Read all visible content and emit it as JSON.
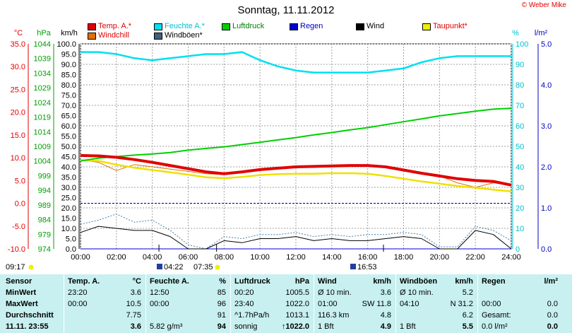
{
  "title": "Sonntag, 11.11.2012",
  "copyright": "© Weber Mike",
  "axis_units": {
    "temp": "°C",
    "pressure": "hPa",
    "wind": "km/h",
    "humidity": "%",
    "rain": "l/m²"
  },
  "colors": {
    "temp": "#e00000",
    "humidity": "#00e0f0",
    "pressure": "#00d000",
    "rain": "#0000d0",
    "wind": "#000000",
    "dewpoint": "#f0f000",
    "windchill": "#e07000",
    "gust": "#4080a0",
    "stats_bg": "#c8f0f0"
  },
  "legend": [
    {
      "label": "Temp. A.*",
      "color": "#e00000"
    },
    {
      "label": "Feuchte A.*",
      "color": "#00e0f0"
    },
    {
      "label": "Luftdruck",
      "color": "#00d000"
    },
    {
      "label": "Regen",
      "color": "#0000d0"
    },
    {
      "label": "Wind",
      "color": "#000000"
    },
    {
      "label": "Taupunkt*",
      "color": "#f0f000"
    },
    {
      "label": "Windchill",
      "color": "#e07000"
    },
    {
      "label": "Windböen*",
      "color": "#406080"
    }
  ],
  "chart_data": {
    "type": "line",
    "title": "Sonntag, 11.11.2012",
    "x": [
      0,
      1,
      2,
      3,
      4,
      5,
      6,
      7,
      8,
      9,
      10,
      11,
      12,
      13,
      14,
      15,
      16,
      17,
      18,
      19,
      20,
      21,
      22,
      23,
      24
    ],
    "xlim": [
      0,
      24
    ],
    "x_ticks": [
      "00:00",
      "02:00",
      "04:00",
      "06:00",
      "08:00",
      "10:00",
      "12:00",
      "14:00",
      "16:00",
      "18:00",
      "20:00",
      "22:00",
      "24:00"
    ],
    "axes": {
      "temp": {
        "label": "°C",
        "range": [
          -10,
          35
        ],
        "ticks": [
          "35.0",
          "30.0",
          "25.0",
          "20.0",
          "15.0",
          "10.0",
          "5.0",
          "0.0",
          "-5.0",
          "-10.0"
        ]
      },
      "pressure": {
        "label": "hPa",
        "range": [
          974,
          1044
        ],
        "ticks": [
          "1044",
          "1039",
          "1034",
          "1029",
          "1024",
          "1019",
          "1014",
          "1009",
          "1004",
          "999",
          "994",
          "989",
          "984",
          "979",
          "974"
        ]
      },
      "wind": {
        "label": "km/h",
        "range": [
          0,
          100
        ],
        "ticks": [
          "100.0",
          "95.0",
          "90.0",
          "85.0",
          "80.0",
          "75.0",
          "70.0",
          "65.0",
          "60.0",
          "55.0",
          "50.0",
          "45.0",
          "40.0",
          "35.0",
          "30.0",
          "25.0",
          "20.0",
          "15.0",
          "10.0",
          "5.0",
          "0.0"
        ]
      },
      "humidity": {
        "label": "%",
        "range": [
          0,
          100
        ],
        "ticks": [
          "100",
          "90",
          "80",
          "70",
          "60",
          "50",
          "40",
          "30",
          "20",
          "10",
          "0"
        ]
      },
      "rain": {
        "label": "l/m²",
        "range": [
          0,
          5
        ],
        "ticks": [
          "5.0",
          "4.0",
          "3.0",
          "2.0",
          "1.0",
          "0.0"
        ]
      }
    },
    "series": [
      {
        "name": "Temp. A.*",
        "axis": "temp",
        "values": [
          10.5,
          10.4,
          10.1,
          9.6,
          9.0,
          8.3,
          7.6,
          6.9,
          6.5,
          6.9,
          7.4,
          7.7,
          8.0,
          8.1,
          8.2,
          8.3,
          8.3,
          8.0,
          7.3,
          6.6,
          6.0,
          5.4,
          5.0,
          4.8,
          4.0
        ]
      },
      {
        "name": "Feuchte A.*",
        "axis": "humidity",
        "values": [
          96,
          96,
          95,
          93,
          92,
          93,
          94,
          95,
          95,
          96,
          92,
          89,
          87,
          86,
          86,
          86,
          86,
          87,
          88,
          91,
          93,
          94,
          94,
          94,
          94
        ]
      },
      {
        "name": "Luftdruck",
        "axis": "pressure",
        "values": [
          1004.0,
          1005.0,
          1005.5,
          1006.0,
          1006.4,
          1006.9,
          1007.7,
          1008.3,
          1008.8,
          1009.6,
          1010.4,
          1011.2,
          1012.0,
          1012.9,
          1013.7,
          1014.6,
          1015.4,
          1016.4,
          1017.4,
          1018.4,
          1019.4,
          1020.2,
          1021.0,
          1021.7,
          1022.0
        ]
      },
      {
        "name": "Taupunkt*",
        "axis": "temp",
        "values": [
          9.5,
          9.3,
          8.5,
          7.8,
          7.3,
          6.8,
          6.3,
          5.7,
          5.5,
          5.8,
          6.2,
          6.4,
          6.5,
          6.5,
          6.6,
          6.6,
          6.5,
          6.0,
          5.4,
          4.8,
          4.3,
          3.8,
          3.4,
          3.0,
          2.6
        ]
      },
      {
        "name": "Windchill",
        "axis": "temp",
        "values": [
          9.6,
          9.0,
          7.2,
          8.5,
          8.0,
          7.5,
          7.0,
          6.5,
          6.3,
          6.8,
          7.3,
          7.6,
          8.0,
          8.1,
          8.2,
          8.3,
          8.2,
          7.9,
          7.2,
          6.5,
          6.0,
          4.5,
          3.5,
          4.5,
          4.0
        ]
      },
      {
        "name": "Wind",
        "axis": "wind",
        "values": [
          8,
          11,
          10,
          9,
          9,
          6,
          0,
          0,
          4,
          3,
          5,
          5,
          6,
          4,
          5,
          4,
          4,
          5,
          6,
          5,
          0,
          0,
          9,
          7,
          0
        ]
      },
      {
        "name": "Windböen*",
        "axis": "wind",
        "values": [
          12,
          14,
          17,
          13,
          14,
          9,
          2,
          0,
          6,
          5,
          7,
          7,
          8,
          6,
          7,
          6,
          7,
          7,
          8,
          7,
          1,
          1,
          11,
          9,
          4
        ]
      },
      {
        "name": "Regen",
        "axis": "rain",
        "values": [
          0,
          0,
          0,
          0,
          0,
          0,
          0,
          0,
          0,
          0,
          0,
          0,
          0,
          0,
          0,
          0,
          0,
          0,
          0,
          0,
          0,
          0,
          0,
          0,
          0
        ]
      }
    ],
    "annotations": {
      "sunrise": "07:35",
      "sunset": "16:53",
      "moonrise": "04:22",
      "moonset": "09:17"
    },
    "grid": true
  },
  "stats": {
    "sensor": {
      "header": "Sensor",
      "rows": [
        "MinWert",
        "MaxWert",
        "Durchschnitt"
      ],
      "footer": "11.11. 23:55"
    },
    "temp": {
      "header": "Temp. A.",
      "unit": "°C",
      "rows": [
        [
          "23:20",
          "3.6"
        ],
        [
          "00:00",
          "10.5"
        ],
        [
          "",
          "7.75"
        ]
      ],
      "footer": [
        "",
        "3.6"
      ]
    },
    "humidity": {
      "header": "Feuchte A.",
      "unit": "%",
      "rows": [
        [
          "12:50",
          "85"
        ],
        [
          "00:00",
          "96"
        ],
        [
          "",
          "91"
        ]
      ],
      "footer": [
        "5.82 g/m³",
        "94"
      ]
    },
    "pressure": {
      "header": "Luftdruck",
      "unit": "hPa",
      "rows": [
        [
          "00:20",
          "1005.5"
        ],
        [
          "23:40",
          "1022.0"
        ],
        [
          "^1.7hPa/h",
          "1013.1"
        ]
      ],
      "footer": [
        "sonnig",
        "↑1022.0"
      ]
    },
    "wind": {
      "header": "Wind",
      "unit": "km/h",
      "rows": [
        [
          "Ø 10 min.",
          "3.6"
        ],
        [
          "01:00",
          "SW 11.8"
        ],
        [
          "116.3 km",
          "4.8"
        ]
      ],
      "footer": [
        "1 Bft",
        "4.9"
      ]
    },
    "gust": {
      "header": "Windböen",
      "unit": "km/h",
      "rows": [
        [
          "Ø 10 min.",
          "5.2"
        ],
        [
          "04:10",
          "N 31.2"
        ],
        [
          "",
          "6.2"
        ]
      ],
      "footer": [
        "1 Bft",
        "5.5"
      ]
    },
    "rain": {
      "header": "Regen",
      "unit": "l/m²",
      "rows": [
        [
          "",
          ""
        ],
        [
          "00:00",
          "0.0"
        ],
        [
          "Gesamt:",
          "0.0"
        ]
      ],
      "footer": [
        "0.0 l/m²",
        "0.0"
      ]
    }
  }
}
